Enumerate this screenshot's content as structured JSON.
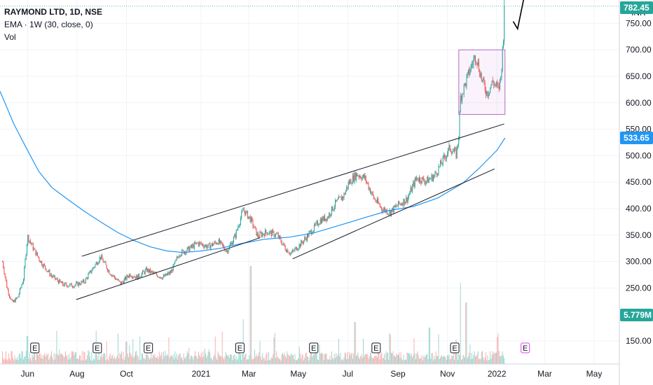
{
  "legend": {
    "symbol": "RAYMOND LTD, 1D, NSE",
    "ema": "EMA · 1W (30, close, 0)",
    "vol": "Vol"
  },
  "currency": "INR",
  "colors": {
    "up": "#26a69a",
    "down": "#ef5350",
    "ema": "#2196f3",
    "box": "#ba68c8",
    "trend": "#131722"
  },
  "chart_data": {
    "type": "candlestick",
    "title": "RAYMOND LTD, 1D, NSE",
    "y_axis": {
      "ticks": [
        "150.00",
        "250.00",
        "300.00",
        "350.00",
        "400.00",
        "450.00",
        "500.00",
        "550.00",
        "600.00",
        "650.00",
        "700.00",
        "750.00"
      ],
      "range": [
        110,
        795
      ]
    },
    "x_axis": {
      "ticks": [
        "Jun",
        "Aug",
        "Oct",
        "2021",
        "Mar",
        "May",
        "Jul",
        "Sep",
        "Nov",
        "2022",
        "Mar",
        "May"
      ]
    },
    "price_tags": [
      {
        "label": "782.45",
        "value": 782.45,
        "color": "#26a69a"
      },
      {
        "label": "533.65",
        "value": 533.65,
        "color": "#2196f3"
      },
      {
        "label": "5.779M",
        "value": 230,
        "color": "#26a69a"
      }
    ],
    "price_anchors": [
      [
        "2020-05-01",
        300
      ],
      [
        "2020-05-07",
        248
      ],
      [
        "2020-05-13",
        222
      ],
      [
        "2020-05-20",
        232
      ],
      [
        "2020-05-27",
        268
      ],
      [
        "2020-06-01",
        348
      ],
      [
        "2020-06-09",
        322
      ],
      [
        "2020-06-18",
        298
      ],
      [
        "2020-07-01",
        272
      ],
      [
        "2020-07-15",
        256
      ],
      [
        "2020-07-28",
        255
      ],
      [
        "2020-08-10",
        262
      ],
      [
        "2020-08-20",
        286
      ],
      [
        "2020-08-30",
        309
      ],
      [
        "2020-09-10",
        280
      ],
      [
        "2020-09-24",
        258
      ],
      [
        "2020-10-05",
        276
      ],
      [
        "2020-10-14",
        270
      ],
      [
        "2020-10-26",
        284
      ],
      [
        "2020-11-05",
        276
      ],
      [
        "2020-11-15",
        270
      ],
      [
        "2020-11-25",
        280
      ],
      [
        "2020-12-05",
        315
      ],
      [
        "2020-12-15",
        322
      ],
      [
        "2020-12-28",
        335
      ],
      [
        "2021-01-10",
        328
      ],
      [
        "2021-01-22",
        338
      ],
      [
        "2021-02-02",
        320
      ],
      [
        "2021-02-12",
        348
      ],
      [
        "2021-02-22",
        398
      ],
      [
        "2021-03-03",
        380
      ],
      [
        "2021-03-12",
        348
      ],
      [
        "2021-03-23",
        356
      ],
      [
        "2021-04-05",
        350
      ],
      [
        "2021-04-15",
        325
      ],
      [
        "2021-04-22",
        315
      ],
      [
        "2021-05-05",
        335
      ],
      [
        "2021-05-16",
        355
      ],
      [
        "2021-05-28",
        378
      ],
      [
        "2021-06-06",
        384
      ],
      [
        "2021-06-16",
        410
      ],
      [
        "2021-06-26",
        424
      ],
      [
        "2021-07-02",
        448
      ],
      [
        "2021-07-12",
        465
      ],
      [
        "2021-07-22",
        458
      ],
      [
        "2021-08-02",
        420
      ],
      [
        "2021-08-12",
        400
      ],
      [
        "2021-08-22",
        393
      ],
      [
        "2021-09-02",
        408
      ],
      [
        "2021-09-12",
        418
      ],
      [
        "2021-09-24",
        458
      ],
      [
        "2021-10-06",
        452
      ],
      [
        "2021-10-16",
        462
      ],
      [
        "2021-10-26",
        490
      ],
      [
        "2021-11-04",
        515
      ],
      [
        "2021-11-12",
        502
      ],
      [
        "2021-11-15",
        540
      ],
      [
        "2021-11-17",
        610
      ],
      [
        "2021-11-24",
        640
      ],
      [
        "2021-11-30",
        668
      ],
      [
        "2021-12-06",
        690
      ],
      [
        "2021-12-14",
        640
      ],
      [
        "2021-12-20",
        618
      ],
      [
        "2021-12-27",
        640
      ],
      [
        "2022-01-03",
        625
      ],
      [
        "2022-01-06",
        650
      ],
      [
        "2022-01-08",
        700
      ],
      [
        "2022-01-11",
        782
      ]
    ],
    "ema_anchors": [
      [
        "2020-04-28",
        622
      ],
      [
        "2020-05-15",
        560
      ],
      [
        "2020-06-01",
        510
      ],
      [
        "2020-06-15",
        470
      ],
      [
        "2020-07-01",
        440
      ],
      [
        "2020-07-20",
        418
      ],
      [
        "2020-08-10",
        395
      ],
      [
        "2020-09-01",
        373
      ],
      [
        "2020-09-20",
        355
      ],
      [
        "2020-10-10",
        340
      ],
      [
        "2020-10-30",
        328
      ],
      [
        "2020-11-20",
        320
      ],
      [
        "2020-12-10",
        317
      ],
      [
        "2021-01-01",
        320
      ],
      [
        "2021-01-25",
        325
      ],
      [
        "2021-02-20",
        334
      ],
      [
        "2021-03-20",
        342
      ],
      [
        "2021-04-20",
        346
      ],
      [
        "2021-05-20",
        354
      ],
      [
        "2021-06-20",
        368
      ],
      [
        "2021-07-20",
        382
      ],
      [
        "2021-08-20",
        396
      ],
      [
        "2021-09-20",
        404
      ],
      [
        "2021-10-20",
        420
      ],
      [
        "2021-11-20",
        448
      ],
      [
        "2021-12-10",
        476
      ],
      [
        "2022-01-01",
        510
      ],
      [
        "2022-01-11",
        533.65
      ]
    ],
    "volume_peaks": [
      {
        "date": "2020-06-01",
        "v": 1.0
      },
      {
        "date": "2020-10-01",
        "v": 0.8
      },
      {
        "date": "2021-02-22",
        "v": 1.6
      },
      {
        "date": "2021-03-03",
        "v": 3.5
      },
      {
        "date": "2021-06-20",
        "v": 0.9
      },
      {
        "date": "2021-07-10",
        "v": 1.5
      },
      {
        "date": "2021-10-10",
        "v": 1.3
      },
      {
        "date": "2021-11-17",
        "v": 2.9
      },
      {
        "date": "2021-11-24",
        "v": 2.2
      },
      {
        "date": "2022-01-11",
        "v": 1.7
      }
    ],
    "earnings_markers": [
      {
        "date": "2020-06-10",
        "label": "E"
      },
      {
        "date": "2020-08-26",
        "label": "E"
      },
      {
        "date": "2020-10-28",
        "label": "E"
      },
      {
        "date": "2021-02-18",
        "label": "E"
      },
      {
        "date": "2021-05-20",
        "label": "E"
      },
      {
        "date": "2021-08-05",
        "label": "E"
      },
      {
        "date": "2021-11-10",
        "label": "E"
      },
      {
        "date": "2022-02-05",
        "label": "E",
        "future": true
      }
    ],
    "drawings": {
      "channel_upper": [
        [
          "2020-08-07",
          310
        ],
        [
          "2022-01-10",
          560
        ]
      ],
      "channel_lower": [
        [
          "2020-07-31",
          228
        ],
        [
          "2021-03-15",
          345
        ]
      ],
      "support_line": [
        [
          "2021-04-24",
          305
        ],
        [
          "2021-12-29",
          475
        ]
      ],
      "box": {
        "from": "2021-11-15",
        "to": "2022-01-11",
        "top": 700,
        "bottom": 578
      }
    }
  }
}
